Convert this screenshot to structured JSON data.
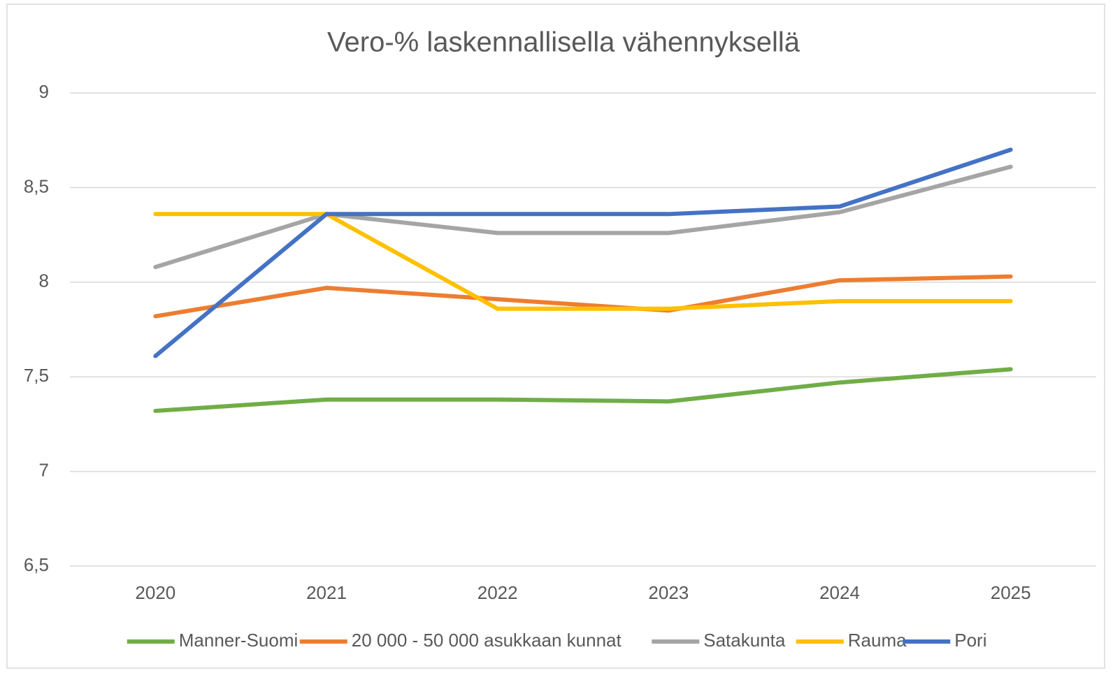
{
  "chart_data": {
    "type": "line",
    "title": "Vero-% laskennallisella vähennyksellä",
    "categories": [
      "2020",
      "2021",
      "2022",
      "2023",
      "2024",
      "2025"
    ],
    "series": [
      {
        "name": "Manner-Suomi",
        "color": "#70ad47",
        "values": [
          7.32,
          7.38,
          7.38,
          7.37,
          7.47,
          7.54
        ]
      },
      {
        "name": "20 000 - 50 000 asukkaan kunnat",
        "color": "#ed7d31",
        "values": [
          7.82,
          7.97,
          7.91,
          7.85,
          8.01,
          8.03
        ]
      },
      {
        "name": "Satakunta",
        "color": "#a5a5a5",
        "values": [
          8.08,
          8.36,
          8.26,
          8.26,
          8.37,
          8.61
        ]
      },
      {
        "name": "Rauma",
        "color": "#ffc000",
        "values": [
          8.36,
          8.36,
          7.86,
          7.86,
          7.9,
          7.9
        ]
      },
      {
        "name": "Pori",
        "color": "#4472c4",
        "values": [
          7.61,
          8.36,
          8.36,
          8.36,
          8.4,
          8.7
        ]
      }
    ],
    "ylim": [
      6.5,
      9
    ],
    "yticks": [
      {
        "value": 6.5,
        "label": "6,5"
      },
      7,
      {
        "value": 7.5,
        "label": "7,5"
      },
      8,
      {
        "value": 8.5,
        "label": "8,5"
      },
      9
    ],
    "grid": true,
    "legend": "bottom"
  }
}
